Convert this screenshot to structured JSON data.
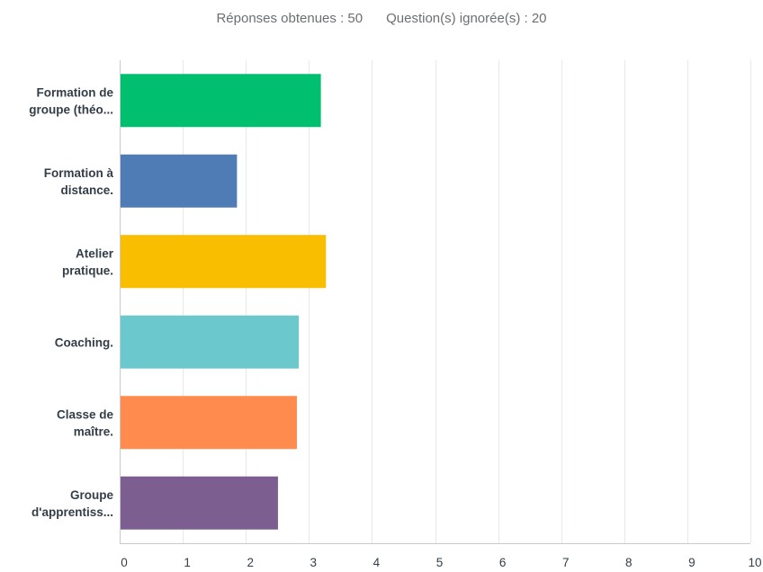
{
  "header": {
    "responses_label": "Réponses obtenues : 50",
    "skipped_label": "Question(s) ignorée(s) : 20"
  },
  "chart_data": {
    "type": "bar",
    "orientation": "horizontal",
    "categories": [
      [
        "Formation de",
        "groupe (théo..."
      ],
      [
        "Formation à",
        "distance."
      ],
      [
        "Atelier",
        "pratique."
      ],
      [
        "Coaching."
      ],
      [
        "Classe de",
        "maître."
      ],
      [
        "Groupe",
        "d'apprentiss..."
      ]
    ],
    "values": [
      3.19,
      1.86,
      3.27,
      2.84,
      2.81,
      2.51
    ],
    "colors": [
      "#00bf6f",
      "#507cb6",
      "#f9be00",
      "#6bc8cd",
      "#ff8b4f",
      "#7d5e90"
    ],
    "xlim": [
      0,
      10
    ],
    "xticks": [
      "0",
      "1",
      "2",
      "3",
      "4",
      "5",
      "6",
      "7",
      "8",
      "9",
      "10"
    ],
    "grid": true,
    "gridline_color": "#e6e8ea",
    "axis_color": "#c7cbcf"
  }
}
